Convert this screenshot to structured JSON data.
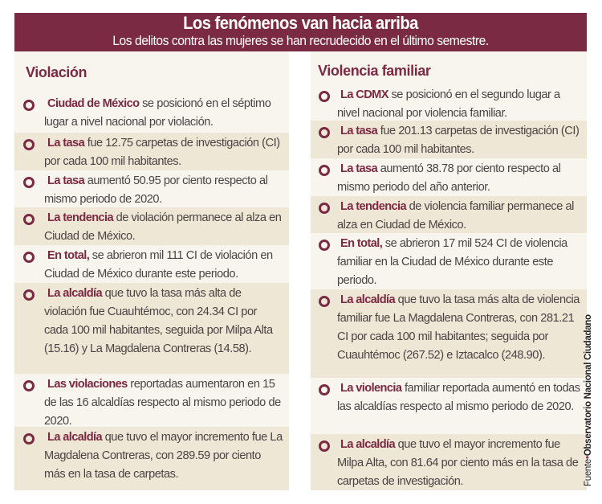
{
  "header": {
    "title": "Los fenómenos van hacia arriba",
    "subtitle": "Los delitos contra las mujeres se han recrudecido en el último semestre."
  },
  "colors": {
    "accent": "#7b2a43",
    "background_light": "#f8f4ee",
    "background_band": "#efe7d6"
  },
  "left": {
    "title": "Violación",
    "items": [
      {
        "strong": "Ciudad de México",
        "text": " se posicionó en el séptimo lugar a nivel nacional por violación.",
        "height": 49,
        "band": false
      },
      {
        "strong": "La tasa",
        "text": " fue 12.75 carpetas de investigación (CI) por cada 100 mil habitantes.",
        "height": 47,
        "band": true
      },
      {
        "strong": "La tasa",
        "text": " aumentó 50.95 por ciento respecto al mismo periodo de 2020.",
        "height": 46,
        "band": false
      },
      {
        "strong": "La tendencia",
        "text": " de violación permanece al alza en Ciudad de México.",
        "height": 47,
        "band": true
      },
      {
        "strong": "En total,",
        "text": " se abrieron mil 111 CI de violación en Ciudad de México durante este periodo.",
        "height": 47,
        "band": false
      },
      {
        "strong": "La alcaldía",
        "text": " que tuvo la tasa más alta de violación fue Cuauhtémoc, con 24.34 CI por cada 100 mil habitantes, seguida por Milpa Alta (15.16) y La Magdalena Contreras (14.58).",
        "height": 113,
        "band": true
      },
      {
        "strong": "Las violaciones",
        "text": " reportadas aumentaron en 15 de las 16 alcaldías respecto al mismo periodo de 2020.",
        "height": 66,
        "band": false
      },
      {
        "strong": "La alcaldía",
        "text": " que tuvo el mayor incremento fue La Magdalena Contreras, con 289.59 por ciento más en la tasa de carpetas.",
        "height": 79,
        "band": true
      }
    ]
  },
  "right": {
    "title": "Violencia familiar",
    "items": [
      {
        "strong": "La CDMX",
        "text": " se posicionó en el segundo lugar a nivel nacional por violencia familiar.",
        "height": 45,
        "band": false
      },
      {
        "strong": "La tasa",
        "text": " fue 201.13 carpetas de investigación (CI) por cada 100 mil habitantes.",
        "height": 47,
        "band": true
      },
      {
        "strong": "La tasa",
        "text": " aumentó 38.78 por ciento respecto al mismo periodo del año anterior.",
        "height": 47,
        "band": false
      },
      {
        "strong": "La tendencia",
        "text": " de violencia familiar permanece al alza en Ciudad de México.",
        "height": 46,
        "band": true
      },
      {
        "strong": "En total,",
        "text": " se abrieron 17 mil 524 CI de violencia familiar en la Ciudad de México durante este periodo.",
        "height": 70,
        "band": false
      },
      {
        "strong": "La alcaldía",
        "text": " que tuvo la tasa más alta de violencia familiar fue La Magdalena Contreras, con 281.21 CI por cada 100 mil habitantes; seguida por Cuauhtémoc (267.52) e Iztacalco (248.90).",
        "height": 110,
        "band": true
      },
      {
        "strong": "La violencia",
        "text": " familiar reportada aumentó en todas las alcaldías respecto al mismo periodo de 2020.",
        "height": 70,
        "band": false
      },
      {
        "strong": "La alcaldía",
        "text": " que tuvo el mayor incremento fue Milpa Alta, con 81.64 por ciento más en la tasa de carpetas de investigación.",
        "height": 70,
        "band": true
      }
    ]
  },
  "source": {
    "label": "Fuente",
    "separator": "•",
    "organization": "Observatorio Nacional Ciudadano"
  }
}
